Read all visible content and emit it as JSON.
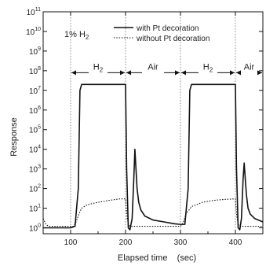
{
  "chart_data": {
    "type": "line",
    "title": "",
    "annotation": "1% H",
    "annotation_sub": "2",
    "xlabel": "Elapsed time    (sec)",
    "ylabel": "Response",
    "xlim": [
      50,
      450
    ],
    "ylim_log10": [
      -0.3,
      11
    ],
    "log_y": true,
    "x_ticks": [
      100,
      200,
      300,
      400
    ],
    "x_tick_labels": [
      "100",
      "200",
      "300",
      "400"
    ],
    "y_ticks_exp": [
      0,
      1,
      2,
      3,
      4,
      5,
      6,
      7,
      8,
      9,
      10,
      11
    ],
    "y_tick_labels": [
      "10",
      "10",
      "10",
      "10",
      "10",
      "10",
      "10",
      "10",
      "10",
      "10",
      "10",
      "10"
    ],
    "y_tick_exponents": [
      "0",
      "1",
      "2",
      "3",
      "4",
      "5",
      "6",
      "7",
      "8",
      "9",
      "10",
      "11"
    ],
    "legend_position": "top-right",
    "grid": false,
    "gas_markers": [
      {
        "label": "H",
        "sub": "2",
        "x_start": 100,
        "x_end": 200
      },
      {
        "label": "Air",
        "sub": "",
        "x_start": 200,
        "x_end": 300
      },
      {
        "label": "H",
        "sub": "2",
        "x_start": 300,
        "x_end": 400
      },
      {
        "label": "Air",
        "sub": "",
        "x_start": 400,
        "x_end": 450
      }
    ],
    "series": [
      {
        "name": "with Pt decoration",
        "style": "solid",
        "color": "#111111",
        "x": [
          50,
          100,
          108,
          114,
          117,
          120,
          130,
          150,
          180,
          200,
          202,
          205,
          208,
          212,
          215,
          217,
          219,
          221,
          224,
          228,
          235,
          250,
          270,
          290,
          300,
          305,
          308,
          314,
          317,
          320,
          330,
          350,
          380,
          400,
          402,
          405,
          408,
          411,
          414,
          416,
          418,
          420,
          423,
          427,
          435,
          450
        ],
        "y": [
          1,
          1,
          1.2,
          100,
          10000000,
          20000000,
          20000000,
          20000000,
          20000000,
          20000000,
          1000,
          1,
          0.8,
          3,
          300,
          10000,
          1000,
          100,
          20,
          8,
          4,
          2.5,
          2,
          1.6,
          1.5,
          1.5,
          1.5,
          100,
          10000000,
          20000000,
          20000000,
          20000000,
          20000000,
          20000000,
          1000,
          1,
          0.8,
          3,
          300,
          2000,
          300,
          50,
          10,
          5,
          3,
          2
        ]
      },
      {
        "name": "without Pt decoration",
        "style": "dotted",
        "color": "#111111",
        "x": [
          50,
          55,
          60,
          70,
          100,
          105,
          110,
          115,
          120,
          130,
          150,
          170,
          190,
          200,
          203,
          206,
          210,
          220,
          240,
          260,
          280,
          300,
          305,
          310,
          320,
          340,
          360,
          380,
          400,
          403,
          406,
          410,
          420,
          435,
          450
        ],
        "y": [
          3,
          1.5,
          1.2,
          1.2,
          1.2,
          1.2,
          2,
          5,
          10,
          15,
          20,
          25,
          30,
          30,
          3,
          1.3,
          1.2,
          1.2,
          1.2,
          1.2,
          1.2,
          1.2,
          1.8,
          5,
          12,
          20,
          25,
          28,
          30,
          3,
          1.3,
          1.2,
          1.2,
          1.2,
          1.2
        ]
      }
    ]
  }
}
